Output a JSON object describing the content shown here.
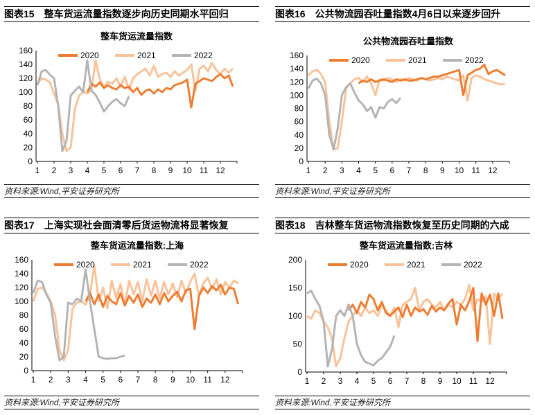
{
  "colors": {
    "2020": "#ED7D31",
    "2021": "#F8C29A",
    "2022": "#B4B4B4"
  },
  "source": "资料来源:Wind,平安证券研究所",
  "chart_data": [
    {
      "type": "line",
      "figure_label": "图表15",
      "figure_title": "整车货运流量指数逐步向历史同期水平回归",
      "title": "整车货运流量指数",
      "xlabel": "",
      "ylabel": "",
      "xlim": [
        1,
        13
      ],
      "ylim": [
        0,
        160
      ],
      "yticks": [
        0,
        20,
        40,
        60,
        80,
        100,
        120,
        140,
        160
      ],
      "xticks": [
        "1",
        "2",
        "3",
        "4",
        "5",
        "6",
        "7",
        "8",
        "9",
        "10",
        "11",
        "12"
      ],
      "x_step_months": 0.25,
      "legend": "top",
      "grid": false,
      "series": [
        {
          "name": "2020",
          "x_start": 4,
          "values": [
            100,
            112,
            108,
            114,
            106,
            110,
            106,
            104,
            110,
            106,
            108,
            100,
            106,
            96,
            102,
            104,
            98,
            104,
            100,
            106,
            104,
            110,
            112,
            114,
            118,
            78,
            112,
            116,
            120,
            118,
            116,
            122,
            126,
            120,
            124,
            108
          ]
        },
        {
          "name": "2021",
          "x_start": 1,
          "values": [
            112,
            120,
            118,
            114,
            98,
            82,
            40,
            15,
            20,
            75,
            95,
            100,
            98,
            104,
            146,
            118,
            108,
            115,
            112,
            120,
            108,
            122,
            104,
            120,
            126,
            130,
            134,
            124,
            138,
            122,
            126,
            128,
            122,
            130,
            124,
            128,
            132,
            140,
            102,
            134,
            138,
            130,
            142,
            132,
            126,
            134,
            128,
            134
          ]
        },
        {
          "name": "2022",
          "x_start": 1,
          "values": [
            110,
            130,
            132,
            125,
            120,
            80,
            15,
            30,
            95,
            102,
            108,
            100,
            146,
            102,
            96,
            85,
            72,
            80,
            86,
            90,
            84,
            80,
            94
          ]
        }
      ]
    },
    {
      "type": "line",
      "figure_label": "图表16",
      "figure_title": "公共物流园吞吐量指数4月6日以来逐步回升",
      "title": "公共物流园吞吐量指数",
      "xlabel": "",
      "ylabel": "",
      "xlim": [
        1,
        13
      ],
      "ylim": [
        0,
        160
      ],
      "yticks": [
        0,
        20,
        40,
        60,
        80,
        100,
        120,
        140,
        160
      ],
      "xticks": [
        "1",
        "2",
        "3",
        "4",
        "5",
        "6",
        "7",
        "8",
        "9",
        "10",
        "11",
        "12"
      ],
      "x_step_months": 0.25,
      "legend": "top",
      "grid": false,
      "series": [
        {
          "name": "2020",
          "x_start": 4,
          "values": [
            118,
            122,
            120,
            124,
            120,
            122,
            124,
            122,
            120,
            124,
            122,
            124,
            122,
            122,
            124,
            126,
            124,
            126,
            128,
            128,
            130,
            132,
            134,
            136,
            138,
            100,
            130,
            134,
            138,
            140,
            146,
            132,
            136,
            138,
            134,
            130
          ]
        },
        {
          "name": "2021",
          "x_start": 1,
          "values": [
            130,
            136,
            138,
            132,
            120,
            60,
            18,
            20,
            60,
            110,
            118,
            124,
            126,
            120,
            128,
            118,
            100,
            124,
            122,
            126,
            124,
            120,
            124,
            122,
            126,
            124,
            122,
            126,
            124,
            122,
            124,
            126,
            124,
            128,
            126,
            124,
            122,
            130,
            92,
            126,
            130,
            128,
            124,
            122,
            120,
            118,
            116,
            118
          ]
        },
        {
          "name": "2022",
          "x_start": 1,
          "values": [
            110,
            122,
            125,
            118,
            100,
            40,
            18,
            50,
            100,
            112,
            118,
            104,
            92,
            86,
            76,
            82,
            66,
            82,
            80,
            90,
            94,
            88,
            96
          ]
        }
      ]
    },
    {
      "type": "line",
      "figure_label": "图表17",
      "figure_title": "上海实现社会面清零后货运物流将显著恢复",
      "title": "整车货运流量指数:上海",
      "xlabel": "",
      "ylabel": "",
      "xlim": [
        1,
        13
      ],
      "ylim": [
        0,
        160
      ],
      "yticks": [
        0,
        20,
        40,
        60,
        80,
        100,
        120,
        140,
        160
      ],
      "xticks": [
        "1",
        "2",
        "3",
        "4",
        "5",
        "6",
        "7",
        "8",
        "9",
        "10",
        "11",
        "12"
      ],
      "x_step_months": 0.25,
      "legend": "top",
      "grid": false,
      "series": [
        {
          "name": "2020",
          "x_start": 4,
          "values": [
            100,
            112,
            96,
            110,
            92,
            108,
            100,
            96,
            112,
            94,
            108,
            98,
            110,
            92,
            104,
            98,
            110,
            96,
            112,
            100,
            108,
            114,
            100,
            116,
            118,
            60,
            108,
            120,
            112,
            122,
            116,
            124,
            110,
            120,
            118,
            96
          ]
        },
        {
          "name": "2021",
          "x_start": 1,
          "values": [
            100,
            118,
            120,
            112,
            100,
            80,
            30,
            15,
            30,
            90,
            98,
            100,
            95,
            110,
            152,
            100,
            120,
            90,
            130,
            105,
            125,
            95,
            130,
            110,
            128,
            100,
            132,
            108,
            130,
            104,
            128,
            110,
            126,
            106,
            130,
            112,
            128,
            140,
            108,
            126,
            134,
            118,
            132,
            110,
            128,
            120,
            130,
            126
          ]
        },
        {
          "name": "2022",
          "x_start": 1,
          "values": [
            112,
            130,
            128,
            110,
            98,
            50,
            15,
            20,
            98,
            96,
            104,
            100,
            146,
            100,
            60,
            20,
            18,
            17,
            18,
            18,
            20,
            22
          ]
        }
      ]
    },
    {
      "type": "line",
      "figure_label": "图表18",
      "figure_title": "吉林整车货运物流指数恢复至历史同期的六成",
      "title": "整车货运流量指数:吉林",
      "xlabel": "",
      "ylabel": "",
      "xlim": [
        1,
        13
      ],
      "ylim": [
        0,
        200
      ],
      "yticks": [
        0,
        50,
        100,
        150,
        200
      ],
      "xticks": [
        "1",
        "2",
        "3",
        "4",
        "5",
        "6",
        "7",
        "8",
        "9",
        "10",
        "11",
        "12"
      ],
      "x_step_months": 0.25,
      "legend": "top",
      "grid": false,
      "series": [
        {
          "name": "2020",
          "x_start": 3.5,
          "values": [
            110,
            120,
            105,
            125,
            115,
            138,
            130,
            110,
            125,
            105,
            100,
            108,
            115,
            98,
            120,
            100,
            115,
            108,
            112,
            102,
            118,
            108,
            115,
            110,
            122,
            130,
            85,
            120,
            110,
            126,
            150,
            55,
            140,
            120,
            138,
            100,
            140,
            95
          ]
        },
        {
          "name": "2021",
          "x_start": 1,
          "values": [
            100,
            95,
            110,
            105,
            90,
            80,
            60,
            10,
            25,
            60,
            90,
            100,
            110,
            100,
            115,
            105,
            110,
            100,
            120,
            110,
            100,
            115,
            80,
            120,
            125,
            130,
            150,
            110,
            125,
            130,
            120,
            115,
            125,
            110,
            120,
            115,
            125,
            120,
            130,
            155,
            110,
            130,
            125,
            135,
            50,
            140,
            130,
            140
          ]
        },
        {
          "name": "2022",
          "x_start": 1,
          "values": [
            140,
            145,
            130,
            118,
            90,
            10,
            40,
            100,
            110,
            100,
            120,
            100,
            50,
            30,
            18,
            15,
            12,
            20,
            25,
            35,
            45,
            65
          ]
        }
      ]
    }
  ]
}
